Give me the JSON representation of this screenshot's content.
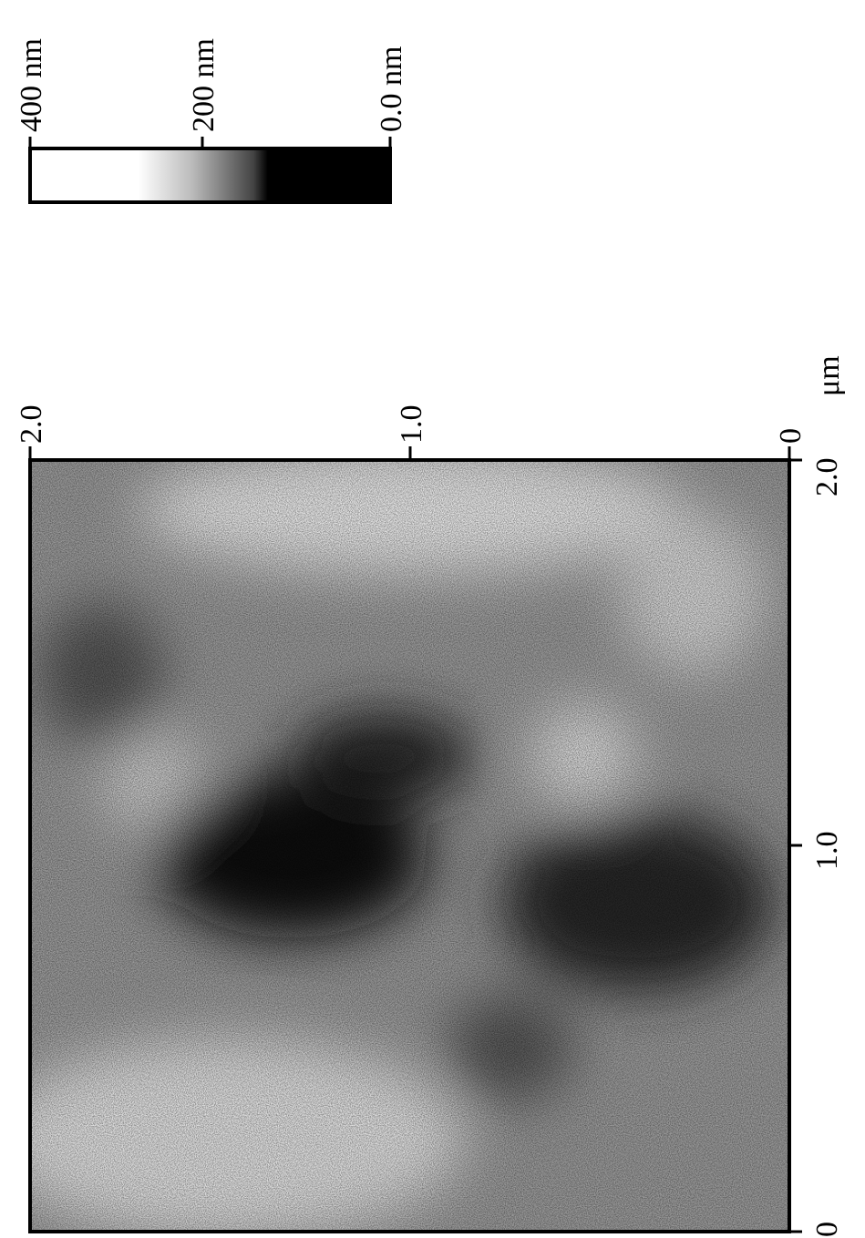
{
  "colorbar": {
    "labels": [
      "400 nm",
      "200 nm",
      "0.0 nm"
    ]
  },
  "top_axis": {
    "ticks": [
      "2.0",
      "1.0",
      "0"
    ],
    "unit": "μm"
  },
  "right_axis": {
    "ticks": [
      "2.0",
      "1.0",
      "0"
    ]
  }
}
